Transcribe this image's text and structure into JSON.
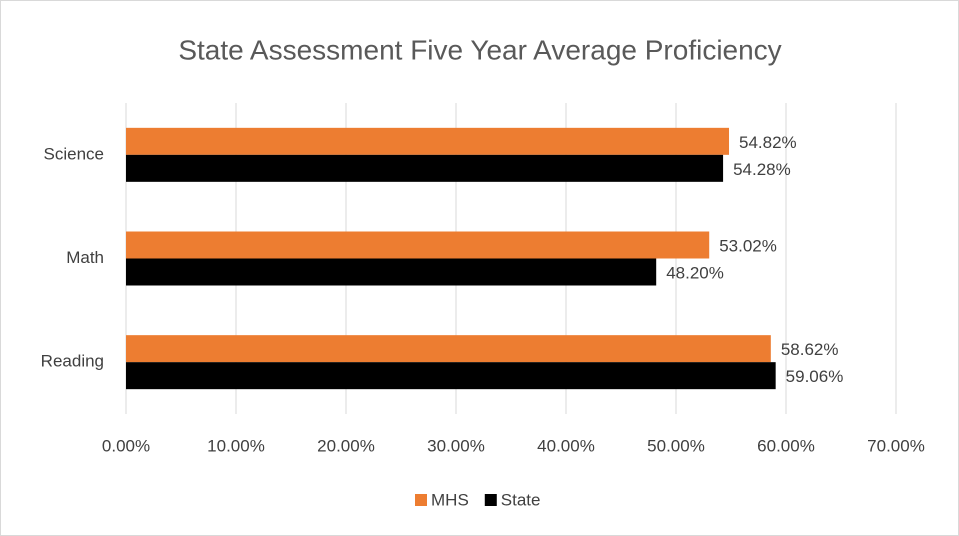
{
  "chart_data": {
    "type": "bar",
    "orientation": "horizontal",
    "title": "State Assessment Five Year Average Proficiency",
    "categories": [
      "Reading",
      "Math",
      "Science"
    ],
    "series": [
      {
        "name": "MHS",
        "color": "#ed7d31",
        "values": [
          58.62,
          53.02,
          54.82
        ],
        "value_labels": [
          "58.62%",
          "53.02%",
          "54.82%"
        ]
      },
      {
        "name": "State",
        "color": "#000000",
        "values": [
          59.06,
          48.2,
          54.28
        ],
        "value_labels": [
          "59.06%",
          "48.20%",
          "54.28%"
        ]
      }
    ],
    "xlim": [
      0,
      70
    ],
    "xticks": [
      {
        "value": 0,
        "label": "0.00%"
      },
      {
        "value": 10,
        "label": "10.00%"
      },
      {
        "value": 20,
        "label": "20.00%"
      },
      {
        "value": 30,
        "label": "30.00%"
      },
      {
        "value": 40,
        "label": "40.00%"
      },
      {
        "value": 50,
        "label": "50.00%"
      },
      {
        "value": 60,
        "label": "60.00%"
      },
      {
        "value": 70,
        "label": "70.00%"
      }
    ],
    "grid": true,
    "legend": "bottom"
  }
}
